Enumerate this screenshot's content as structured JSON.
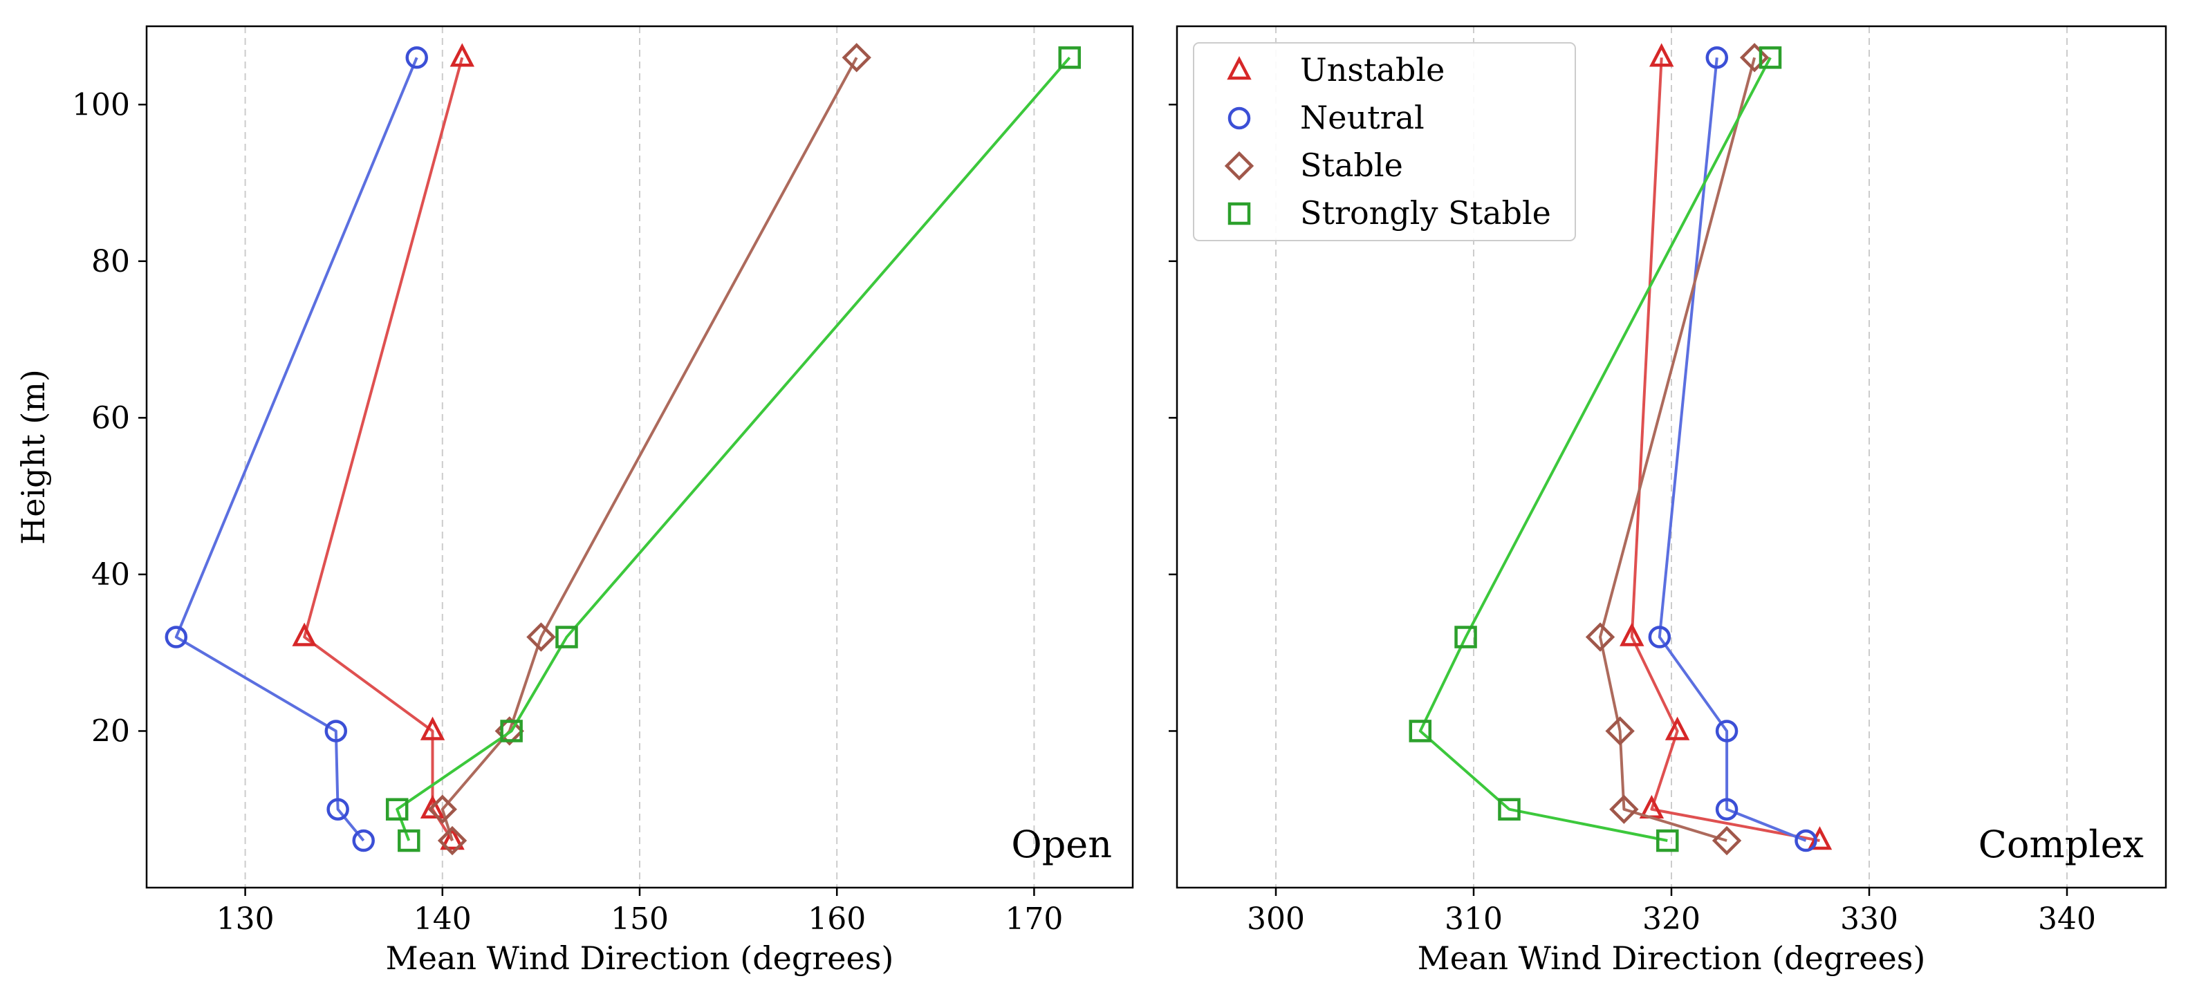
{
  "figure": {
    "ylabel": "Height (m)",
    "legend": {
      "placement": "upper-left of right panel",
      "entries": [
        "Unstable",
        "Neutral",
        "Stable",
        "Strongly Stable"
      ]
    }
  },
  "colors": {
    "Unstable": "#d62728",
    "Neutral": "#3b4fd6",
    "Stable": "#a0574a",
    "Strongly Stable": "#2ca02c",
    "Unstable_line": "#df5050",
    "Neutral_line": "#5b6fe0",
    "Stable_line": "#ad6a5c",
    "Strongly Stable_line": "#3cc83c",
    "grid": "#cccccc"
  },
  "markers": {
    "Unstable": "triangle",
    "Neutral": "circle",
    "Stable": "diamond",
    "Strongly Stable": "square"
  },
  "chart_data": [
    {
      "type": "line",
      "panel_label": "Open",
      "xlabel": "Mean Wind Direction (degrees)",
      "ylabel": "Height (m)",
      "xlim": [
        125,
        175
      ],
      "ylim": [
        0,
        110
      ],
      "xticks": [
        130,
        140,
        150,
        160,
        170
      ],
      "yticks": [
        20,
        40,
        60,
        80,
        100
      ],
      "grid": "vertical dashed",
      "series": [
        {
          "name": "Unstable",
          "points": [
            [
              140.5,
              6
            ],
            [
              139.5,
              10
            ],
            [
              139.5,
              20
            ],
            [
              133,
              32
            ],
            [
              141,
              106
            ]
          ]
        },
        {
          "name": "Neutral",
          "points": [
            [
              136,
              6
            ],
            [
              134.7,
              10
            ],
            [
              134.6,
              20
            ],
            [
              126.5,
              32
            ],
            [
              138.7,
              106
            ]
          ]
        },
        {
          "name": "Stable",
          "points": [
            [
              140.5,
              6
            ],
            [
              140,
              10
            ],
            [
              143.4,
              20
            ],
            [
              145,
              32
            ],
            [
              161,
              106
            ]
          ]
        },
        {
          "name": "Strongly Stable",
          "points": [
            [
              138.3,
              6
            ],
            [
              137.7,
              10
            ],
            [
              143.5,
              20
            ],
            [
              146.3,
              32
            ],
            [
              171.8,
              106
            ]
          ]
        }
      ]
    },
    {
      "type": "line",
      "panel_label": "Complex",
      "xlabel": "Mean Wind Direction (degrees)",
      "ylabel": "",
      "xlim": [
        295,
        345
      ],
      "ylim": [
        0,
        110
      ],
      "xticks": [
        300,
        310,
        320,
        330,
        340
      ],
      "yticks": [
        20,
        40,
        60,
        80,
        100
      ],
      "grid": "vertical dashed",
      "series": [
        {
          "name": "Unstable",
          "points": [
            [
              327.5,
              6
            ],
            [
              319,
              10
            ],
            [
              320.3,
              20
            ],
            [
              318,
              32
            ],
            [
              319.5,
              106
            ]
          ]
        },
        {
          "name": "Neutral",
          "points": [
            [
              326.8,
              6
            ],
            [
              322.8,
              10
            ],
            [
              322.8,
              20
            ],
            [
              319.4,
              32
            ],
            [
              322.3,
              106
            ]
          ]
        },
        {
          "name": "Stable",
          "points": [
            [
              322.8,
              6
            ],
            [
              317.6,
              10
            ],
            [
              317.4,
              20
            ],
            [
              316.4,
              32
            ],
            [
              324.2,
              106
            ]
          ]
        },
        {
          "name": "Strongly Stable",
          "points": [
            [
              319.8,
              6
            ],
            [
              311.8,
              10
            ],
            [
              307.3,
              20
            ],
            [
              309.6,
              32
            ],
            [
              325,
              106
            ]
          ]
        }
      ]
    }
  ]
}
